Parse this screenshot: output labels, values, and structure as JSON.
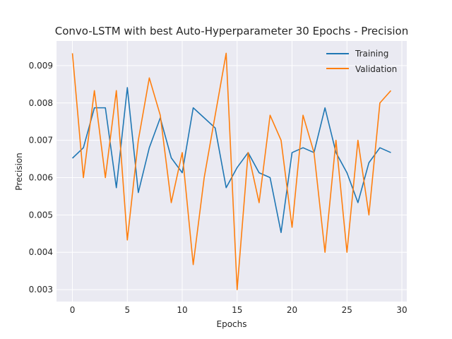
{
  "chart_data": {
    "type": "line",
    "title": "Convo-LSTM with best Auto-Hyperparameter 30 Epochs - Precision",
    "xlabel": "Epochs",
    "ylabel": "Precision",
    "xlim": [
      -1.45,
      30.45
    ],
    "ylim": [
      0.00268,
      0.00966
    ],
    "xticks": [
      0,
      5,
      10,
      15,
      20,
      25,
      30
    ],
    "xtick_labels": [
      "0",
      "5",
      "10",
      "15",
      "20",
      "25",
      "30"
    ],
    "yticks": [
      0.003,
      0.004,
      0.005,
      0.006,
      0.007,
      0.008,
      0.009
    ],
    "ytick_labels": [
      "0.003",
      "0.004",
      "0.005",
      "0.006",
      "0.007",
      "0.008",
      "0.009"
    ],
    "grid": true,
    "legend_position": "top-right",
    "x": [
      0,
      1,
      2,
      3,
      4,
      5,
      6,
      7,
      8,
      9,
      10,
      11,
      12,
      13,
      14,
      15,
      16,
      17,
      18,
      19,
      20,
      21,
      22,
      23,
      24,
      25,
      26,
      27,
      28,
      29
    ],
    "series": [
      {
        "name": "Training",
        "color": "#1f77b4",
        "values": [
          0.00652,
          0.0068,
          0.00787,
          0.00787,
          0.00573,
          0.00841,
          0.0056,
          0.0068,
          0.0076,
          0.00653,
          0.00613,
          0.00787,
          0.0076,
          0.00733,
          0.00573,
          0.00627,
          0.00667,
          0.00613,
          0.006,
          0.00453,
          0.00667,
          0.0068,
          0.00667,
          0.00787,
          0.00667,
          0.00613,
          0.00533,
          0.0064,
          0.0068,
          0.00667
        ]
      },
      {
        "name": "Validation",
        "color": "#ff7f0e",
        "values": [
          0.00933,
          0.006,
          0.00833,
          0.006,
          0.00833,
          0.00433,
          0.007,
          0.00867,
          0.00767,
          0.00533,
          0.00667,
          0.00367,
          0.006,
          0.00767,
          0.00933,
          0.003,
          0.00667,
          0.00533,
          0.00767,
          0.007,
          0.00467,
          0.00767,
          0.00667,
          0.004,
          0.007,
          0.004,
          0.007,
          0.005,
          0.008,
          0.00833
        ]
      }
    ]
  }
}
